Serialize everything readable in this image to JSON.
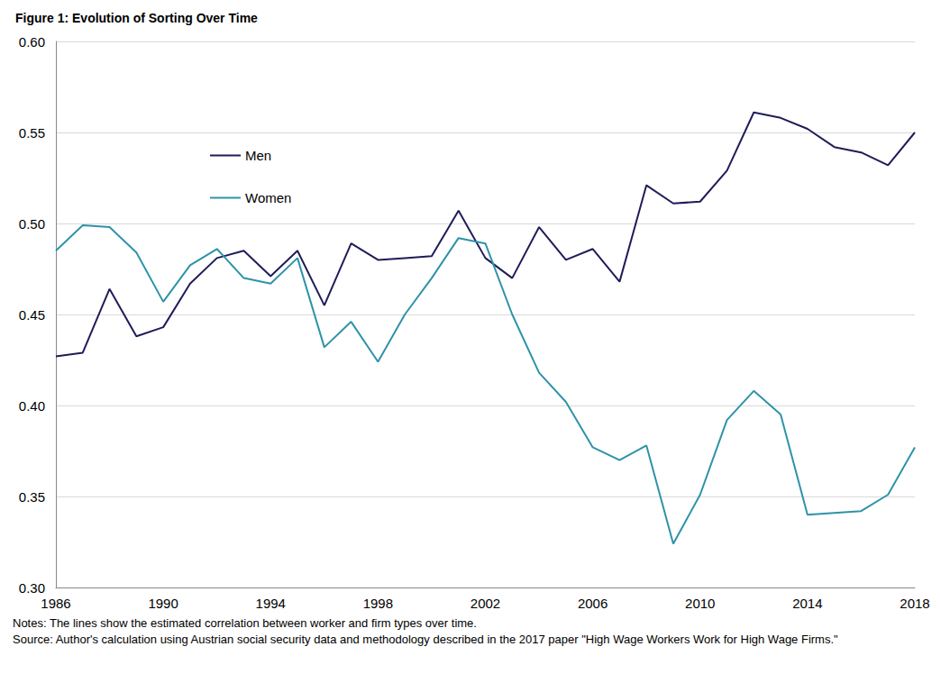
{
  "chart_data": {
    "type": "line",
    "title": "Figure 1: Evolution of Sorting Over Time",
    "notes": [
      "Notes: The lines show the estimated correlation between worker and firm types over time.",
      "Source: Author's calculation using Austrian social security data and methodology described in the 2017 paper \"High Wage Workers Work for High Wage Firms.\""
    ],
    "x": [
      1986,
      1987,
      1988,
      1989,
      1990,
      1991,
      1992,
      1993,
      1994,
      1995,
      1996,
      1997,
      1998,
      1999,
      2000,
      2001,
      2002,
      2003,
      2004,
      2005,
      2006,
      2007,
      2008,
      2009,
      2010,
      2011,
      2012,
      2013,
      2014,
      2015,
      2016,
      2017,
      2018
    ],
    "series": [
      {
        "name": "Men",
        "color": "#1f1c58",
        "values": [
          0.427,
          0.429,
          0.464,
          0.438,
          0.443,
          0.467,
          0.481,
          0.485,
          0.471,
          0.485,
          0.455,
          0.489,
          0.48,
          0.481,
          0.482,
          0.507,
          0.481,
          0.47,
          0.498,
          0.48,
          0.486,
          0.468,
          0.521,
          0.511,
          0.512,
          0.529,
          0.561,
          0.558,
          0.552,
          0.542,
          0.539,
          0.532,
          0.55
        ]
      },
      {
        "name": "Women",
        "color": "#2e93a8",
        "values": [
          0.485,
          0.499,
          0.498,
          0.484,
          0.457,
          0.477,
          0.486,
          0.47,
          0.467,
          0.481,
          0.432,
          0.446,
          0.424,
          0.45,
          0.47,
          0.492,
          0.489,
          0.45,
          0.418,
          0.402,
          0.377,
          0.37,
          0.378,
          0.324,
          0.351,
          0.392,
          0.408,
          0.395,
          0.34,
          0.341,
          0.342,
          0.351,
          0.377
        ]
      }
    ],
    "xlim": [
      1986,
      2018
    ],
    "xticks": [
      1986,
      1990,
      1994,
      1998,
      2002,
      2006,
      2010,
      2014,
      2018
    ],
    "ylim": [
      0.3,
      0.6
    ],
    "yticks": [
      {
        "value": 0.3,
        "label": "0.30"
      },
      {
        "value": 0.35,
        "label": "0.35"
      },
      {
        "value": 0.4,
        "label": "0.40"
      },
      {
        "value": 0.45,
        "label": "0.45"
      },
      {
        "value": 0.5,
        "label": "0.50"
      },
      {
        "value": 0.55,
        "label": "0.55"
      },
      {
        "value": 0.6,
        "label": "0.60"
      }
    ],
    "grid": true,
    "legend": "upper left"
  }
}
